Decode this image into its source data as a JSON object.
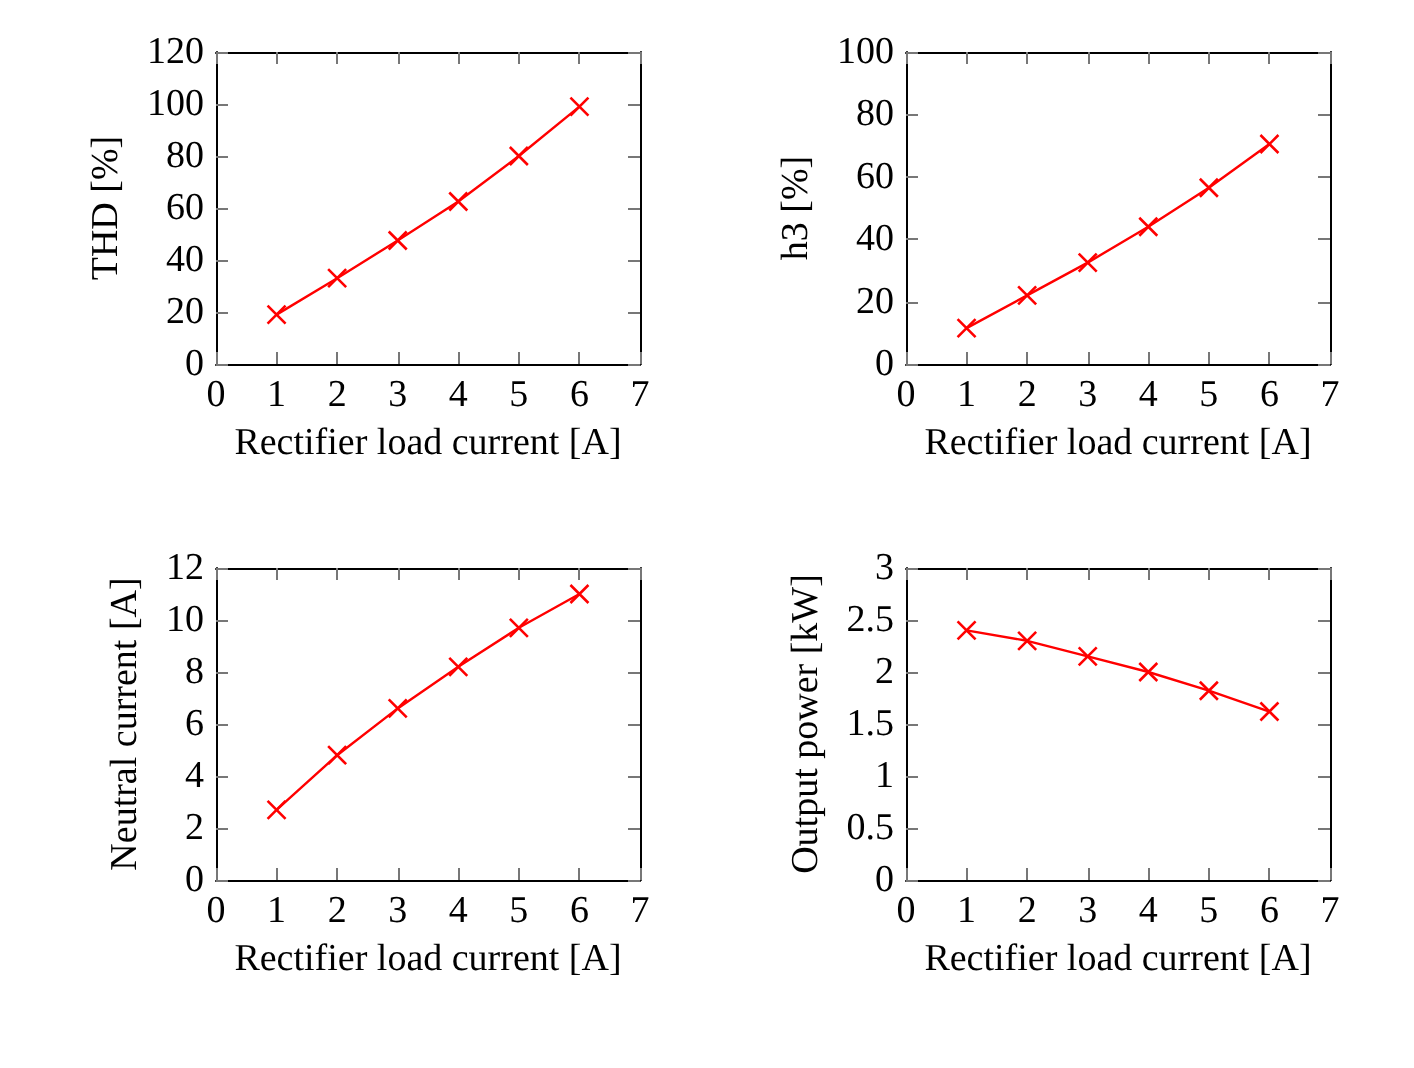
{
  "chart_data": [
    {
      "type": "line",
      "xlabel": "Rectifier load current [A]",
      "ylabel": "THD [%]",
      "x": [
        1,
        2,
        3,
        4,
        5,
        6
      ],
      "series": [
        {
          "color": "#ff0000",
          "values": [
            19,
            33,
            47.5,
            62.5,
            80,
            99
          ]
        }
      ],
      "xlim": [
        0,
        7
      ],
      "xticks": [
        0,
        1,
        2,
        3,
        4,
        5,
        6,
        7
      ],
      "ylim": [
        0,
        120
      ],
      "yticks": [
        0,
        20,
        40,
        60,
        80,
        100,
        120
      ],
      "marker": "cross"
    },
    {
      "type": "line",
      "xlabel": "Rectifier load current [A]",
      "ylabel": "h3 [%]",
      "x": [
        1,
        2,
        3,
        4,
        5,
        6
      ],
      "series": [
        {
          "color": "#ff0000",
          "values": [
            11.5,
            22,
            32.5,
            44,
            56.5,
            70.5
          ]
        }
      ],
      "xlim": [
        0,
        7
      ],
      "xticks": [
        0,
        1,
        2,
        3,
        4,
        5,
        6,
        7
      ],
      "ylim": [
        0,
        100
      ],
      "yticks": [
        0,
        20,
        40,
        60,
        80,
        100
      ],
      "marker": "cross"
    },
    {
      "type": "line",
      "xlabel": "Rectifier load current [A]",
      "ylabel": "Neutral current [A]",
      "x": [
        1,
        2,
        3,
        4,
        5,
        6
      ],
      "series": [
        {
          "color": "#ff0000",
          "values": [
            2.7,
            4.8,
            6.6,
            8.2,
            9.7,
            11.0
          ]
        }
      ],
      "xlim": [
        0,
        7
      ],
      "xticks": [
        0,
        1,
        2,
        3,
        4,
        5,
        6,
        7
      ],
      "ylim": [
        0,
        12
      ],
      "yticks": [
        0,
        2,
        4,
        6,
        8,
        10,
        12
      ],
      "marker": "cross"
    },
    {
      "type": "line",
      "xlabel": "Rectifier load current [A]",
      "ylabel": "Output power [kW]",
      "x": [
        1,
        2,
        3,
        4,
        5,
        6
      ],
      "series": [
        {
          "color": "#ff0000",
          "values": [
            2.4,
            2.3,
            2.15,
            2.0,
            1.82,
            1.62
          ]
        }
      ],
      "xlim": [
        0,
        7
      ],
      "xticks": [
        0,
        1,
        2,
        3,
        4,
        5,
        6,
        7
      ],
      "ylim": [
        0,
        3
      ],
      "yticks": [
        0,
        0.5,
        1,
        1.5,
        2,
        2.5,
        3
      ],
      "marker": "cross"
    }
  ]
}
